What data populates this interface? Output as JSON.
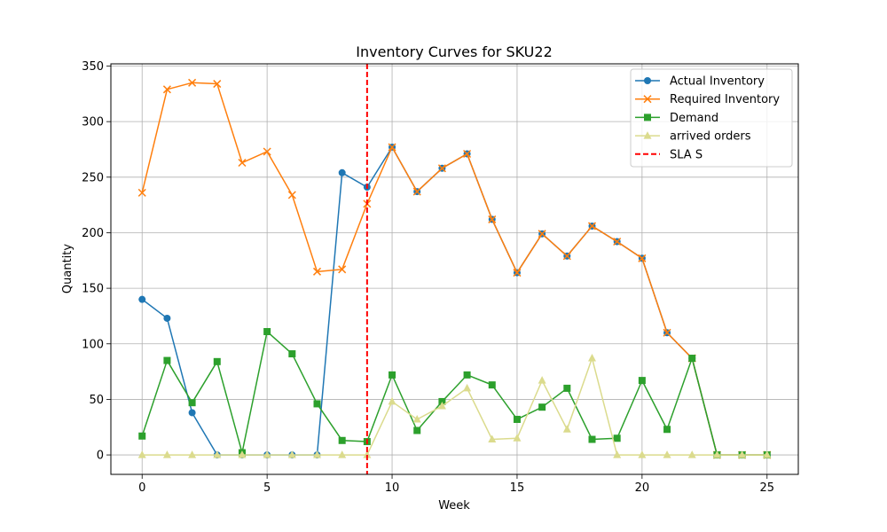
{
  "chart_data": {
    "type": "line",
    "title": "Inventory Curves for SKU22",
    "xlabel": "Week",
    "ylabel": "Quantity",
    "xlim": [
      -1.25,
      26.25
    ],
    "ylim": [
      -17.5,
      352
    ],
    "xticks": [
      0,
      5,
      10,
      15,
      20,
      25
    ],
    "yticks": [
      0,
      50,
      100,
      150,
      200,
      250,
      300,
      350
    ],
    "grid": true,
    "legend_position": "top-right",
    "x": [
      0,
      1,
      2,
      3,
      4,
      5,
      6,
      7,
      8,
      9,
      10,
      11,
      12,
      13,
      14,
      15,
      16,
      17,
      18,
      19,
      20,
      21,
      22,
      23,
      24,
      25
    ],
    "series": [
      {
        "name": "Actual Inventory",
        "color": "#1f77b4",
        "marker": "circle",
        "values": [
          140,
          123,
          38,
          0,
          0,
          0,
          0,
          0,
          254,
          241,
          277,
          237,
          258,
          271,
          212,
          164,
          199,
          179,
          206,
          192,
          177,
          110,
          87,
          0,
          0,
          0
        ]
      },
      {
        "name": "Required Inventory",
        "color": "#ff7f0e",
        "marker": "x",
        "values": [
          236,
          329,
          335,
          334,
          263,
          273,
          234,
          165,
          167,
          226,
          277,
          237,
          258,
          271,
          212,
          164,
          199,
          179,
          206,
          192,
          177,
          110,
          87,
          0,
          0,
          0
        ]
      },
      {
        "name": "Demand",
        "color": "#2ca02c",
        "marker": "square",
        "values": [
          17,
          85,
          47,
          84,
          2,
          111,
          91,
          46,
          13,
          12,
          72,
          22,
          48,
          72,
          63,
          32,
          43,
          60,
          14,
          15,
          67,
          23,
          87,
          0,
          0,
          0
        ]
      },
      {
        "name": "arrived orders",
        "color": "#dbdb8d",
        "marker": "triangle",
        "values": [
          0,
          0,
          0,
          0,
          0,
          0,
          0,
          0,
          0,
          0,
          48,
          32,
          44,
          60,
          14,
          15,
          67,
          23,
          87,
          0,
          0,
          0,
          0,
          0,
          0,
          0
        ]
      }
    ],
    "reference_lines": [
      {
        "name": "SLA S",
        "orientation": "vertical",
        "x": 9,
        "color": "#ff0000",
        "style": "dashed"
      }
    ]
  }
}
